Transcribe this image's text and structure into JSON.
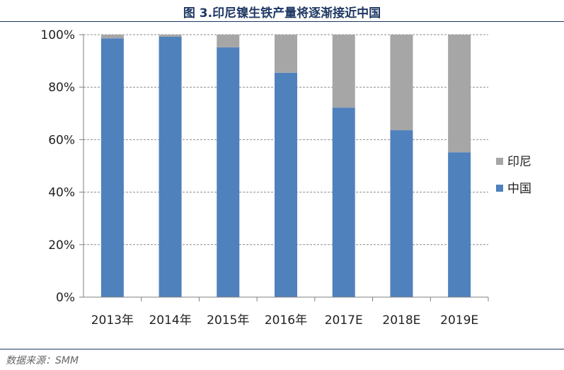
{
  "figure": {
    "title": "图 3.印尼镍生铁产量将逐渐接近中国",
    "source": "数据来源：SMM"
  },
  "chart_data": {
    "type": "bar",
    "stacked": true,
    "categories": [
      "2013年",
      "2014年",
      "2015年",
      "2016年",
      "2017E",
      "2018E",
      "2019E"
    ],
    "series": [
      {
        "name": "中国",
        "values": [
          98.6,
          99.2,
          95.2,
          85.5,
          72.2,
          63.6,
          55.2
        ],
        "color": "#4f81bd"
      },
      {
        "name": "印尼",
        "values": [
          1.4,
          0.8,
          4.8,
          14.5,
          27.8,
          36.4,
          44.8
        ],
        "color": "#a6a6a6"
      }
    ],
    "yticks": [
      "0%",
      "20%",
      "40%",
      "60%",
      "80%",
      "100%"
    ],
    "ylim": [
      0,
      100
    ],
    "grid": true,
    "legend_position": "right"
  }
}
